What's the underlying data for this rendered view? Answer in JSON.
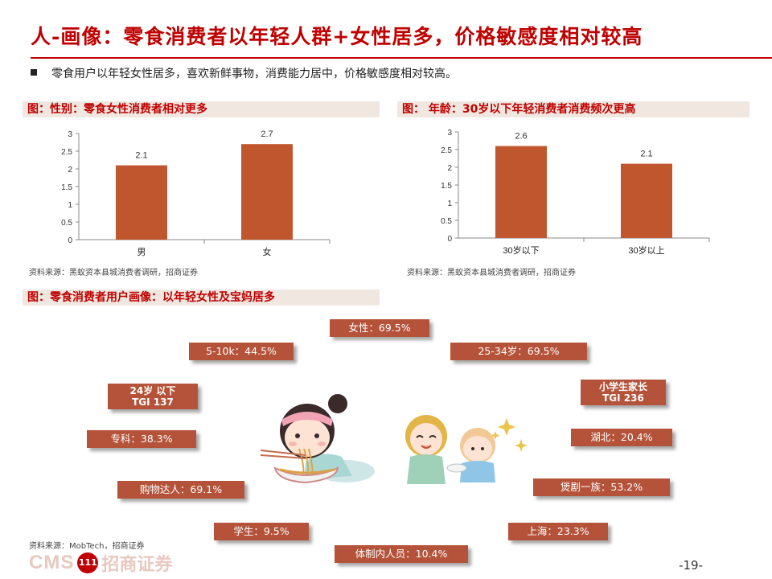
{
  "title": "人-画像：零食消费者以年轻人群+女性居多，价格敏感度相对较高",
  "bullet": "零食用户以年轻女性居多，喜欢新鲜事物，消费能力居中，价格敏感度相对较高。",
  "sections": {
    "gender_head": "图：性别：零食女性消费者相对更多",
    "age_head": "图： 年龄：30岁以下年轻消费者消费频次更高",
    "persona_head": "图：零食消费者用户画像：以年轻女性及宝妈居多"
  },
  "sources": {
    "gender": "资料来源：黑蚁资本县城消费者调研，招商证券",
    "age": "资料来源：黑蚁资本县城消费者调研，招商证券",
    "persona": "资料来源：MobTech，招商证券"
  },
  "chart_data": [
    {
      "type": "bar",
      "categories": [
        "男",
        "女"
      ],
      "values": [
        2.1,
        2.7
      ],
      "ylim": [
        0,
        3
      ],
      "yticks": [
        "0",
        "0.5",
        "1",
        "1.5",
        "2",
        "2.5",
        "3"
      ],
      "color": "#c0562d"
    },
    {
      "type": "bar",
      "categories": [
        "30岁以下",
        "30岁以上"
      ],
      "values": [
        2.6,
        2.1
      ],
      "ylim": [
        0,
        3
      ],
      "yticks": [
        "0",
        "0.5",
        "1",
        "1.5",
        "2",
        "2.5",
        "3"
      ],
      "color": "#c0562d"
    }
  ],
  "tags": {
    "female": "女性：69.5%",
    "income": "5-10k：44.5%",
    "age_25_34": "25-34岁：69.5%",
    "under24_line1": "24岁 以下",
    "under24_line2": "TGI 137",
    "parent_line1": "小学生家长",
    "parent_line2": "TGI 236",
    "college": "专科：38.3%",
    "hubei": "湖北：20.4%",
    "shopper": "购物达人：69.1%",
    "drama": "煲剧一族：53.2%",
    "student": "学生：9.5%",
    "shanghai": "上海：23.3%",
    "staff": "体制内人员：10.4%"
  },
  "footer": {
    "logo_cms": "CMS",
    "logo_cn": "招商证券",
    "page": "-19-"
  },
  "colors": {
    "accent": "#c00000",
    "bar": "#c0562d",
    "tag": "#b5533a"
  }
}
